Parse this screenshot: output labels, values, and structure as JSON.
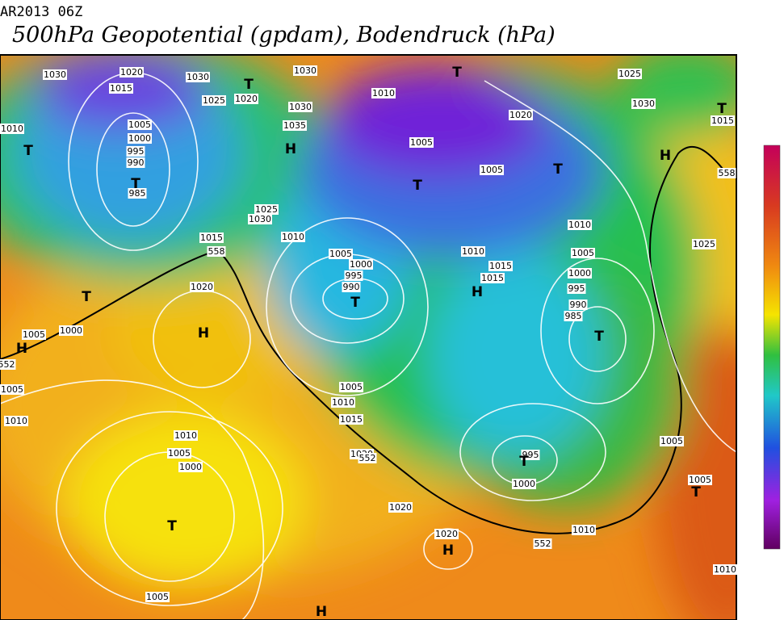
{
  "header": {
    "date": "AR2013 06Z",
    "title": "500hPa Geopotential (gpdam), Bodendruck (hPa)"
  },
  "pressure_labels": [
    "1030",
    "1020",
    "1015",
    "1030",
    "1025",
    "1020",
    "1030",
    "1010",
    "1005",
    "1000",
    "995",
    "990",
    "985",
    "1030",
    "1035",
    "1010",
    "1005",
    "1020",
    "1025",
    "1030",
    "1015",
    "558",
    "1005",
    "1025",
    "1030",
    "1015",
    "558",
    "1010",
    "1005",
    "1000",
    "995",
    "990",
    "1010",
    "1015",
    "1015",
    "1010",
    "1005",
    "1000",
    "995",
    "990",
    "985",
    "1025",
    "1020",
    "1005",
    "1000",
    "552",
    "1005",
    "1010",
    "1005",
    "1010",
    "1015",
    "1010",
    "1005",
    "1000",
    "1020",
    "552",
    "995",
    "1000",
    "1020",
    "1020",
    "1005",
    "1005",
    "1010",
    "552",
    "1005",
    "1010"
  ],
  "centers": [
    "T",
    "T",
    "T",
    "H",
    "T",
    "T",
    "H",
    "T",
    "T",
    "H",
    "T",
    "H",
    "H",
    "T",
    "T",
    "T",
    "H",
    "H",
    "T",
    "T"
  ]
}
